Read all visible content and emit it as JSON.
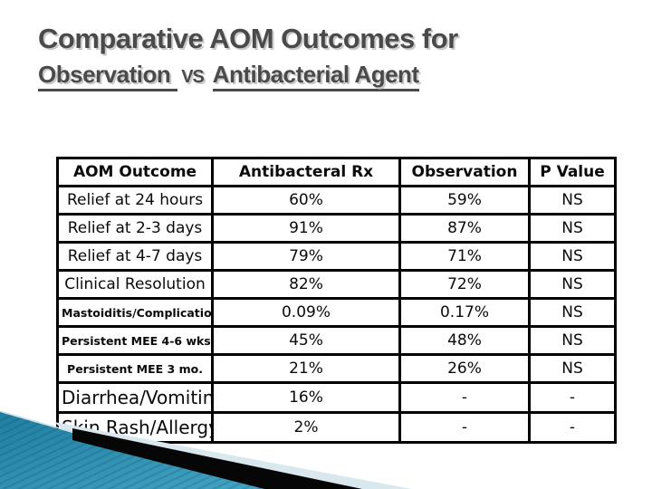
{
  "title": {
    "line1": "Comparative AOM Outcomes for",
    "line2_part1": "Observation",
    "line2_vs": "vs",
    "line2_part2": "Antibacterial Agent"
  },
  "table": {
    "headers": [
      "AOM Outcome",
      "Antibacteral Rx",
      "Observation",
      "P Value"
    ],
    "rows": [
      {
        "outcome": "Relief at 24 hours",
        "rx": "60%",
        "obs": "59%",
        "p": "NS",
        "size": "normal"
      },
      {
        "outcome": "Relief at 2-3 days",
        "rx": "91%",
        "obs": "87%",
        "p": "NS",
        "size": "normal"
      },
      {
        "outcome": "Relief at 4-7 days",
        "rx": "79%",
        "obs": "71%",
        "p": "NS",
        "size": "normal"
      },
      {
        "outcome": "Clinical Resolution",
        "rx": "82%",
        "obs": "72%",
        "p": "NS",
        "size": "normal"
      },
      {
        "outcome": "Mastoiditis/Complication",
        "rx": "0.09%",
        "obs": "0.17%",
        "p": "NS",
        "size": "small"
      },
      {
        "outcome": "Persistent MEE 4-6 wks",
        "rx": "45%",
        "obs": "48%",
        "p": "NS",
        "size": "small"
      },
      {
        "outcome": "Persistent MEE 3 mo.",
        "rx": "21%",
        "obs": "26%",
        "p": "NS",
        "size": "small"
      },
      {
        "outcome": "Diarrhea/Vomiting",
        "rx": "16%",
        "obs": "-",
        "p": "-",
        "size": "large"
      },
      {
        "outcome": "Skin Rash/Allergy",
        "rx": "2%",
        "obs": "-",
        "p": "-",
        "size": "large"
      }
    ]
  },
  "colors": {
    "title_text": "#4a4a4a",
    "table_border": "#000000",
    "teal_wedge_dark": "#1f7ea1",
    "teal_wedge_light": "#43a4c4",
    "pale_wedge": "#d9e7ee",
    "black_stripe": "#060606"
  }
}
